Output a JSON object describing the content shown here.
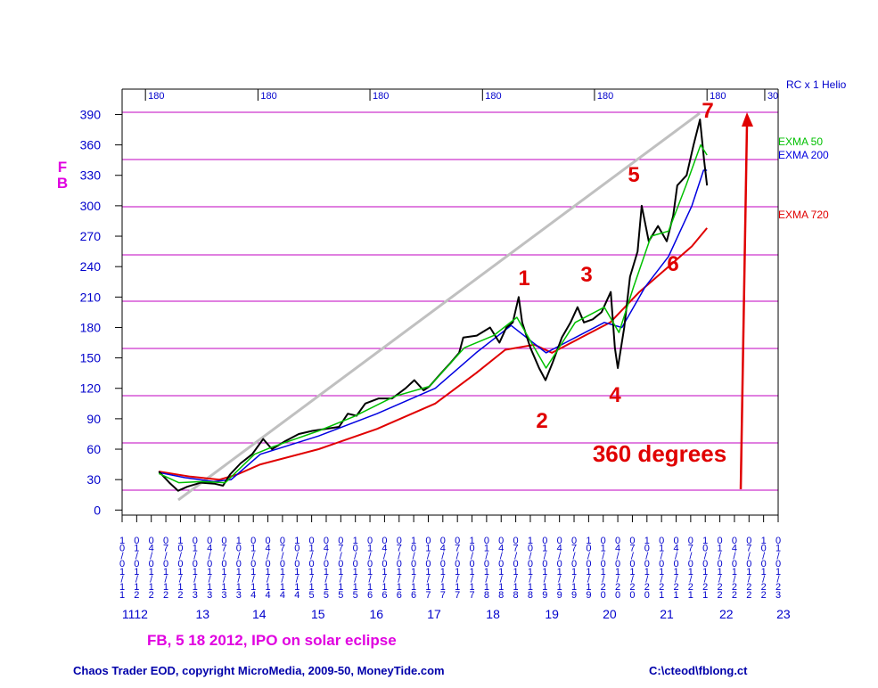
{
  "chart_data": {
    "type": "line",
    "title": "FB",
    "corner_label": "RC x 1 Helio",
    "subtitle": "FB,  5 18 2012,  IPO on solar eclipse",
    "footer_left": "Chaos Trader EOD, copyright MicroMedia, 2009-50, MoneyTide.com",
    "footer_right": "C:\\cteod\\fblong.ct",
    "annotations": [
      "1",
      "2",
      "3",
      "4",
      "5",
      "6",
      "7",
      "360 degrees"
    ],
    "xlim": [
      2011.75,
      2023.0
    ],
    "ylim": [
      -5,
      415
    ],
    "yticks": [
      0,
      30,
      60,
      90,
      120,
      150,
      180,
      210,
      240,
      270,
      300,
      330,
      360,
      390
    ],
    "xticks": [
      {
        "value": 2011.75,
        "label": "10/01/11"
      },
      {
        "value": 2012.0,
        "label": "01/01/12"
      },
      {
        "value": 2012.25,
        "label": "04/01/12"
      },
      {
        "value": 2012.5,
        "label": "07/01/12"
      },
      {
        "value": 2012.75,
        "label": "10/01/12"
      },
      {
        "value": 2013.0,
        "label": "01/01/13"
      },
      {
        "value": 2013.25,
        "label": "04/01/13"
      },
      {
        "value": 2013.5,
        "label": "07/01/13"
      },
      {
        "value": 2013.75,
        "label": "10/01/13"
      },
      {
        "value": 2014.0,
        "label": "01/01/14"
      },
      {
        "value": 2014.25,
        "label": "04/01/14"
      },
      {
        "value": 2014.5,
        "label": "07/01/14"
      },
      {
        "value": 2014.75,
        "label": "10/01/14"
      },
      {
        "value": 2015.0,
        "label": "01/01/15"
      },
      {
        "value": 2015.25,
        "label": "04/01/15"
      },
      {
        "value": 2015.5,
        "label": "07/01/15"
      },
      {
        "value": 2015.75,
        "label": "10/01/15"
      },
      {
        "value": 2016.0,
        "label": "01/01/16"
      },
      {
        "value": 2016.25,
        "label": "04/01/16"
      },
      {
        "value": 2016.5,
        "label": "07/01/16"
      },
      {
        "value": 2016.75,
        "label": "10/01/16"
      },
      {
        "value": 2017.0,
        "label": "01/01/17"
      },
      {
        "value": 2017.25,
        "label": "04/01/17"
      },
      {
        "value": 2017.5,
        "label": "07/01/17"
      },
      {
        "value": 2017.75,
        "label": "10/01/17"
      },
      {
        "value": 2018.0,
        "label": "01/01/18"
      },
      {
        "value": 2018.25,
        "label": "04/01/18"
      },
      {
        "value": 2018.5,
        "label": "07/01/18"
      },
      {
        "value": 2018.75,
        "label": "10/01/18"
      },
      {
        "value": 2019.0,
        "label": "01/01/19"
      },
      {
        "value": 2019.25,
        "label": "04/01/19"
      },
      {
        "value": 2019.5,
        "label": "07/01/19"
      },
      {
        "value": 2019.75,
        "label": "10/01/19"
      },
      {
        "value": 2020.0,
        "label": "01/01/20"
      },
      {
        "value": 2020.25,
        "label": "04/01/20"
      },
      {
        "value": 2020.5,
        "label": "07/01/20"
      },
      {
        "value": 2020.75,
        "label": "10/01/20"
      },
      {
        "value": 2021.0,
        "label": "01/01/21"
      },
      {
        "value": 2021.25,
        "label": "04/01/21"
      },
      {
        "value": 2021.5,
        "label": "07/01/21"
      },
      {
        "value": 2021.75,
        "label": "10/01/21"
      },
      {
        "value": 2022.0,
        "label": "01/01/22"
      },
      {
        "value": 2022.25,
        "label": "04/01/22"
      },
      {
        "value": 2022.5,
        "label": "07/01/22"
      },
      {
        "value": 2022.75,
        "label": "10/01/22"
      },
      {
        "value": 2023.0,
        "label": "01/01/23"
      }
    ],
    "year_labels": [
      {
        "value": 2011.97,
        "label": "1112"
      },
      {
        "value": 2013.13,
        "label": "13"
      },
      {
        "value": 2014.1,
        "label": "14"
      },
      {
        "value": 2015.11,
        "label": "15"
      },
      {
        "value": 2016.11,
        "label": "16"
      },
      {
        "value": 2017.1,
        "label": "17"
      },
      {
        "value": 2018.11,
        "label": "18"
      },
      {
        "value": 2019.12,
        "label": "19"
      },
      {
        "value": 2020.11,
        "label": "20"
      },
      {
        "value": 2021.09,
        "label": "21"
      },
      {
        "value": 2022.11,
        "label": "22"
      },
      {
        "value": 2023.09,
        "label": "23"
      }
    ],
    "x2ticks": [
      {
        "value": 2012.15,
        "label": "180"
      },
      {
        "value": 2014.08,
        "label": "180"
      },
      {
        "value": 2016.0,
        "label": "180"
      },
      {
        "value": 2017.93,
        "label": "180"
      },
      {
        "value": 2019.85,
        "label": "180"
      },
      {
        "value": 2021.78,
        "label": "180"
      },
      {
        "value": 2022.77,
        "label": "30"
      }
    ],
    "series": [
      {
        "color": "#000000",
        "x": [
          2012.38,
          2012.56,
          2012.71,
          2012.87,
          2013.1,
          2013.33,
          2013.48,
          2013.6,
          2013.78,
          2013.98,
          2014.17,
          2014.32,
          2014.55,
          2014.78,
          2015.01,
          2015.24,
          2015.47,
          2015.62,
          2015.77,
          2015.92,
          2016.15,
          2016.38,
          2016.61,
          2016.76,
          2016.92,
          2017.02,
          2017.22,
          2017.38,
          2017.53,
          2017.6,
          2017.83,
          2018.06,
          2018.22,
          2018.34,
          2018.45,
          2018.55,
          2018.61,
          2018.75,
          2018.9,
          2019.01,
          2019.13,
          2019.29,
          2019.44,
          2019.56,
          2019.67,
          2019.82,
          2019.97,
          2020.13,
          2020.2,
          2020.25,
          2020.36,
          2020.46,
          2020.59,
          2020.66,
          2020.78,
          2020.94,
          2021.09,
          2021.2,
          2021.27,
          2021.43,
          2021.55,
          2021.66,
          2021.73,
          2021.78
        ],
        "values": [
          38,
          27,
          19,
          23,
          27,
          26,
          24,
          35,
          46,
          55,
          70,
          60,
          68,
          75,
          78,
          80,
          82,
          95,
          93,
          105,
          110,
          110,
          120,
          128,
          118,
          122,
          135,
          145,
          155,
          170,
          172,
          180,
          165,
          180,
          185,
          210,
          185,
          160,
          140,
          128,
          145,
          170,
          185,
          200,
          185,
          188,
          195,
          215,
          160,
          140,
          180,
          230,
          255,
          300,
          265,
          280,
          265,
          290,
          320,
          330,
          360,
          385,
          345,
          320
        ]
      },
      {
        "name": "EXMA 50",
        "color": "#00c000",
        "x": [
          2012.38,
          2012.72,
          2013.12,
          2013.52,
          2014.02,
          2014.32,
          2015.12,
          2015.72,
          2016.42,
          2017.02,
          2017.62,
          2018.12,
          2018.52,
          2019.02,
          2019.52,
          2020.02,
          2020.27,
          2020.52,
          2020.82,
          2021.12,
          2021.42,
          2021.67,
          2021.78
        ],
        "values": [
          36,
          27,
          28,
          27,
          55,
          62,
          78,
          92,
          112,
          122,
          160,
          172,
          190,
          140,
          185,
          200,
          175,
          220,
          270,
          275,
          320,
          360,
          350
        ]
      },
      {
        "name": "EXMA 200",
        "color": "#0000e0",
        "x": [
          2012.38,
          2012.82,
          2013.32,
          2013.62,
          2014.12,
          2015.12,
          2016.12,
          2017.12,
          2017.82,
          2018.42,
          2019.02,
          2019.52,
          2020.02,
          2020.32,
          2020.72,
          2021.12,
          2021.52,
          2021.72,
          2021.78
        ],
        "values": [
          37,
          32,
          28,
          30,
          55,
          73,
          95,
          120,
          155,
          182,
          155,
          170,
          185,
          180,
          220,
          250,
          300,
          335,
          335
        ]
      },
      {
        "name": "EXMA 720",
        "color": "#e00000",
        "x": [
          2012.38,
          2012.92,
          2013.42,
          2013.72,
          2014.12,
          2015.12,
          2016.12,
          2017.12,
          2017.82,
          2018.32,
          2018.82,
          2019.12,
          2019.62,
          2020.12,
          2020.62,
          2021.12,
          2021.52,
          2021.78
        ],
        "values": [
          38,
          33,
          30,
          35,
          45,
          60,
          80,
          105,
          135,
          158,
          163,
          155,
          170,
          185,
          215,
          240,
          260,
          278
        ]
      }
    ]
  }
}
